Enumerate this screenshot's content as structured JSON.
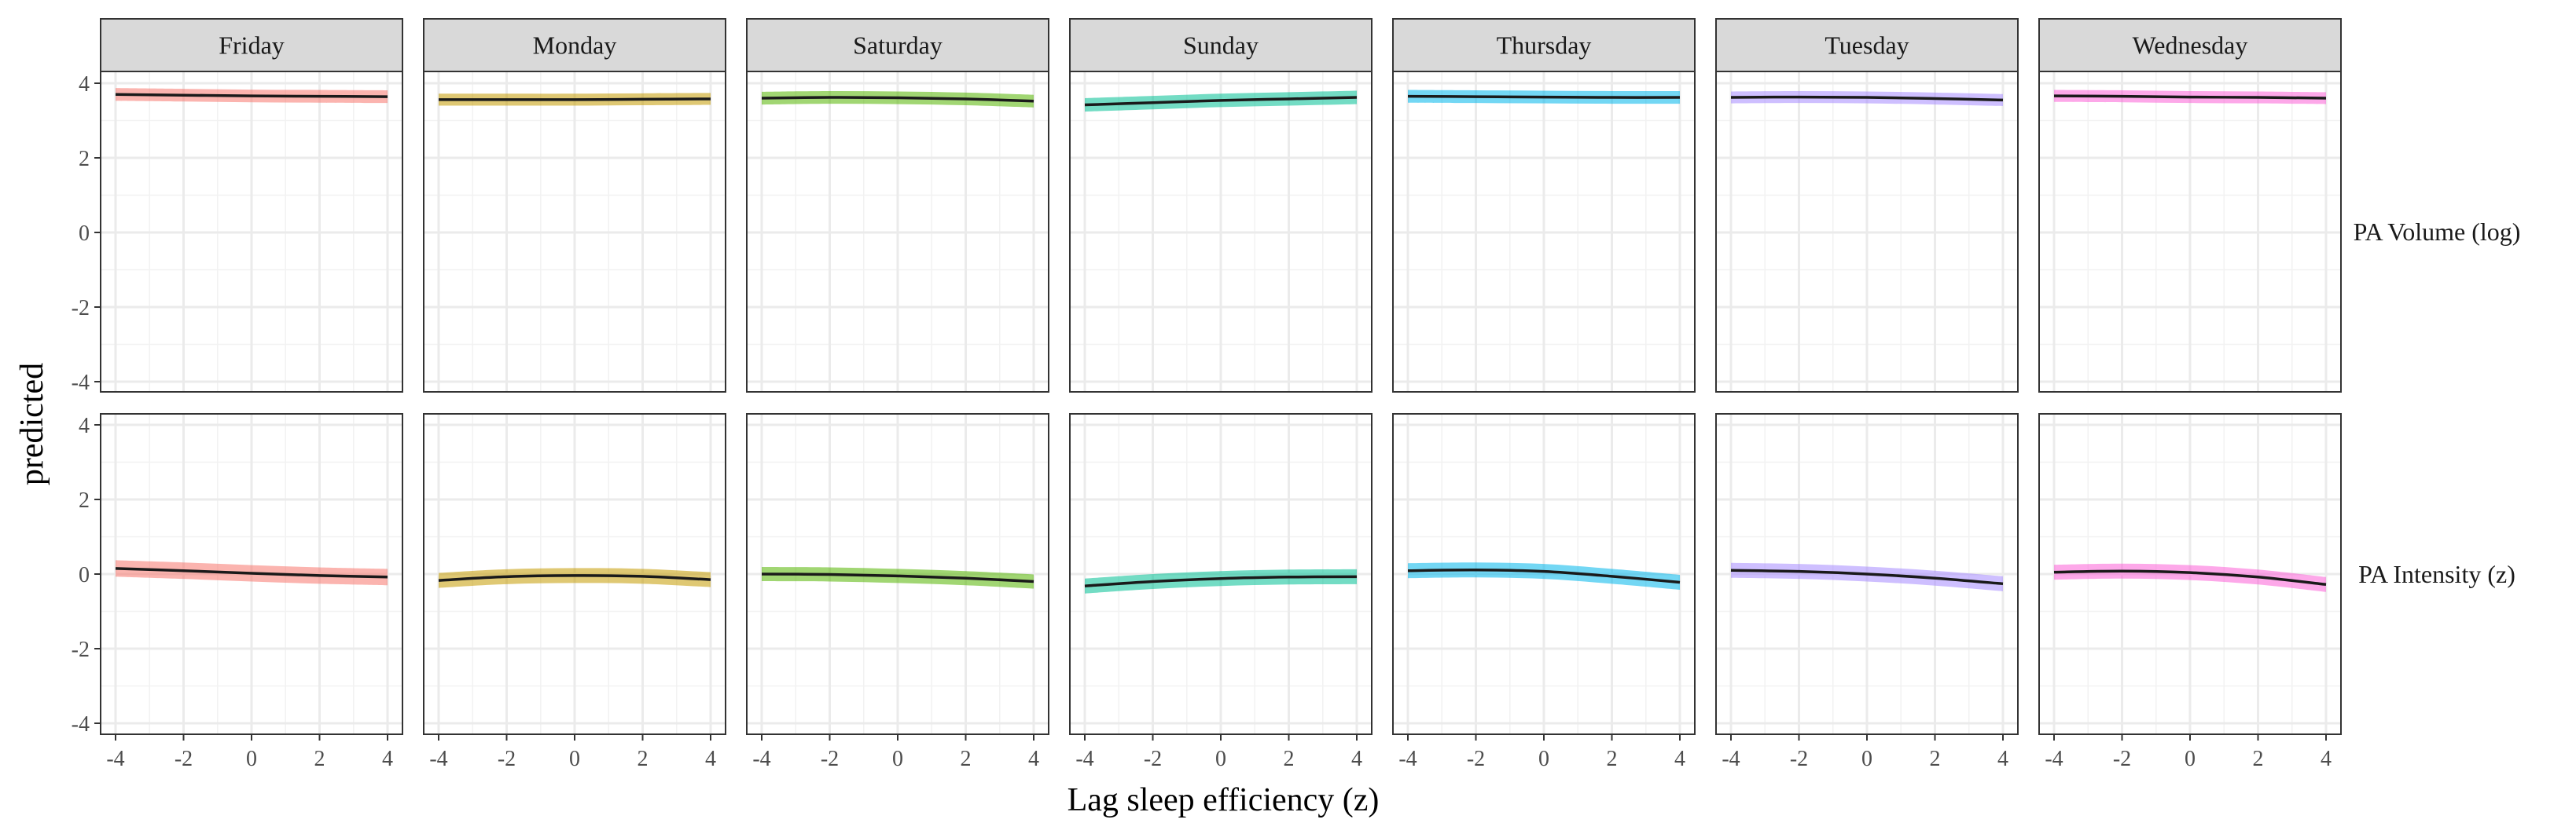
{
  "chart_data": {
    "type": "line",
    "xlabel": "Lag sleep efficiency (z)",
    "ylabel": "predicted",
    "xlim": [
      -4,
      4
    ],
    "ylim": [
      -4,
      4
    ],
    "x_ticks": [
      -4,
      -2,
      0,
      2,
      4
    ],
    "y_ticks": [
      -4,
      -2,
      0,
      2,
      4
    ],
    "x_tick_labels": [
      "-4",
      "-2",
      "0",
      "2",
      "4"
    ],
    "y_tick_labels": [
      "-4",
      "-2",
      "0",
      "2",
      "4"
    ],
    "grid": true,
    "columns": [
      "Friday",
      "Monday",
      "Saturday",
      "Sunday",
      "Thursday",
      "Tuesday",
      "Wednesday"
    ],
    "rows": [
      "PA Volume (log)",
      "PA Intensity (z)"
    ],
    "colors": {
      "Friday": "#F8766D",
      "Monday": "#C49A00",
      "Saturday": "#53B400",
      "Sunday": "#00C094",
      "Thursday": "#00B6EB",
      "Tuesday": "#A58AFF",
      "Wednesday": "#FB61D7"
    },
    "x": [
      -4,
      -2,
      0,
      2,
      4
    ],
    "panels": [
      {
        "row": "PA Volume (log)",
        "day": "Friday",
        "y": [
          3.7,
          3.68,
          3.66,
          3.65,
          3.64
        ],
        "band": 0.17
      },
      {
        "row": "PA Volume (log)",
        "day": "Monday",
        "y": [
          3.56,
          3.56,
          3.56,
          3.57,
          3.58
        ],
        "band": 0.16
      },
      {
        "row": "PA Volume (log)",
        "day": "Saturday",
        "y": [
          3.6,
          3.62,
          3.61,
          3.58,
          3.52
        ],
        "band": 0.17
      },
      {
        "row": "PA Volume (log)",
        "day": "Sunday",
        "y": [
          3.42,
          3.48,
          3.54,
          3.58,
          3.62
        ],
        "band": 0.18
      },
      {
        "row": "PA Volume (log)",
        "day": "Thursday",
        "y": [
          3.65,
          3.64,
          3.63,
          3.62,
          3.62
        ],
        "band": 0.17
      },
      {
        "row": "PA Volume (log)",
        "day": "Tuesday",
        "y": [
          3.62,
          3.63,
          3.62,
          3.59,
          3.55
        ],
        "band": 0.16
      },
      {
        "row": "PA Volume (log)",
        "day": "Wednesday",
        "y": [
          3.66,
          3.65,
          3.63,
          3.62,
          3.6
        ],
        "band": 0.16
      },
      {
        "row": "PA Intensity (z)",
        "day": "Friday",
        "y": [
          0.15,
          0.09,
          0.02,
          -0.04,
          -0.08
        ],
        "band": 0.22
      },
      {
        "row": "PA Intensity (z)",
        "day": "Monday",
        "y": [
          -0.17,
          -0.07,
          -0.04,
          -0.06,
          -0.15
        ],
        "band": 0.2
      },
      {
        "row": "PA Intensity (z)",
        "day": "Saturday",
        "y": [
          0.0,
          -0.01,
          -0.05,
          -0.11,
          -0.2
        ],
        "band": 0.19
      },
      {
        "row": "PA Intensity (z)",
        "day": "Sunday",
        "y": [
          -0.32,
          -0.2,
          -0.12,
          -0.08,
          -0.07
        ],
        "band": 0.2
      },
      {
        "row": "PA Intensity (z)",
        "day": "Thursday",
        "y": [
          0.09,
          0.11,
          0.07,
          -0.06,
          -0.22
        ],
        "band": 0.2
      },
      {
        "row": "PA Intensity (z)",
        "day": "Tuesday",
        "y": [
          0.1,
          0.07,
          0.0,
          -0.11,
          -0.26
        ],
        "band": 0.2
      },
      {
        "row": "PA Intensity (z)",
        "day": "Wednesday",
        "y": [
          0.05,
          0.08,
          0.04,
          -0.08,
          -0.28
        ],
        "band": 0.2
      }
    ]
  }
}
